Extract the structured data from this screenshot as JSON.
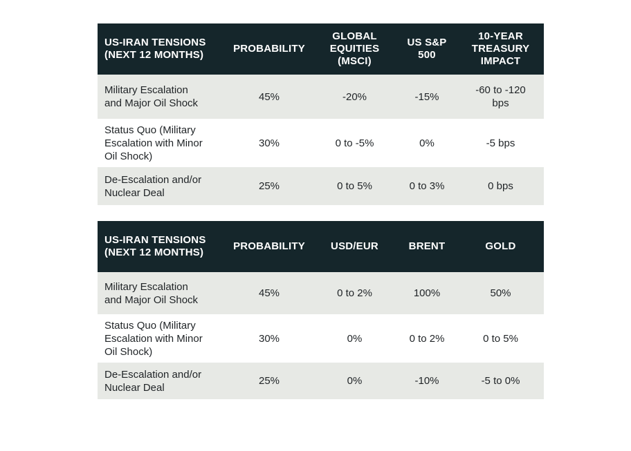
{
  "table1": {
    "headers": [
      "US-IRAN TENSIONS\n(NEXT 12 MONTHS)",
      "PROBABILITY",
      "GLOBAL\nEQUITIES\n(MSCI)",
      "US S&P\n500",
      "10-YEAR\nTREASURY\nIMPACT"
    ],
    "rows": [
      [
        "Military Escalation\nand Major Oil Shock",
        "45%",
        "-20%",
        "-15%",
        "-60 to -120\nbps"
      ],
      [
        "Status Quo (Military\nEscalation with Minor\nOil Shock)",
        "30%",
        "0 to -5%",
        "0%",
        "-5 bps"
      ],
      [
        "De-Escalation and/or\nNuclear Deal",
        "25%",
        "0 to 5%",
        "0 to 3%",
        "0 bps"
      ]
    ]
  },
  "table2": {
    "headers": [
      "US-IRAN TENSIONS\n(NEXT 12 MONTHS)",
      "PROBABILITY",
      "USD/EUR",
      "BRENT",
      "GOLD"
    ],
    "rows": [
      [
        "Military Escalation\nand Major Oil Shock",
        "45%",
        "0 to 2%",
        "100%",
        "50%"
      ],
      [
        "Status Quo (Military\nEscalation with Minor\nOil Shock)",
        "30%",
        "0%",
        "0 to 2%",
        "0 to 5%"
      ],
      [
        "De-Escalation and/or\nNuclear Deal",
        "25%",
        "0%",
        "-10%",
        "-5 to 0%"
      ]
    ]
  },
  "colors": {
    "header_bg": "#15262b",
    "header_text": "#ffffff",
    "shaded_row": "#e7e9e5",
    "body_text": "#1f2326"
  }
}
